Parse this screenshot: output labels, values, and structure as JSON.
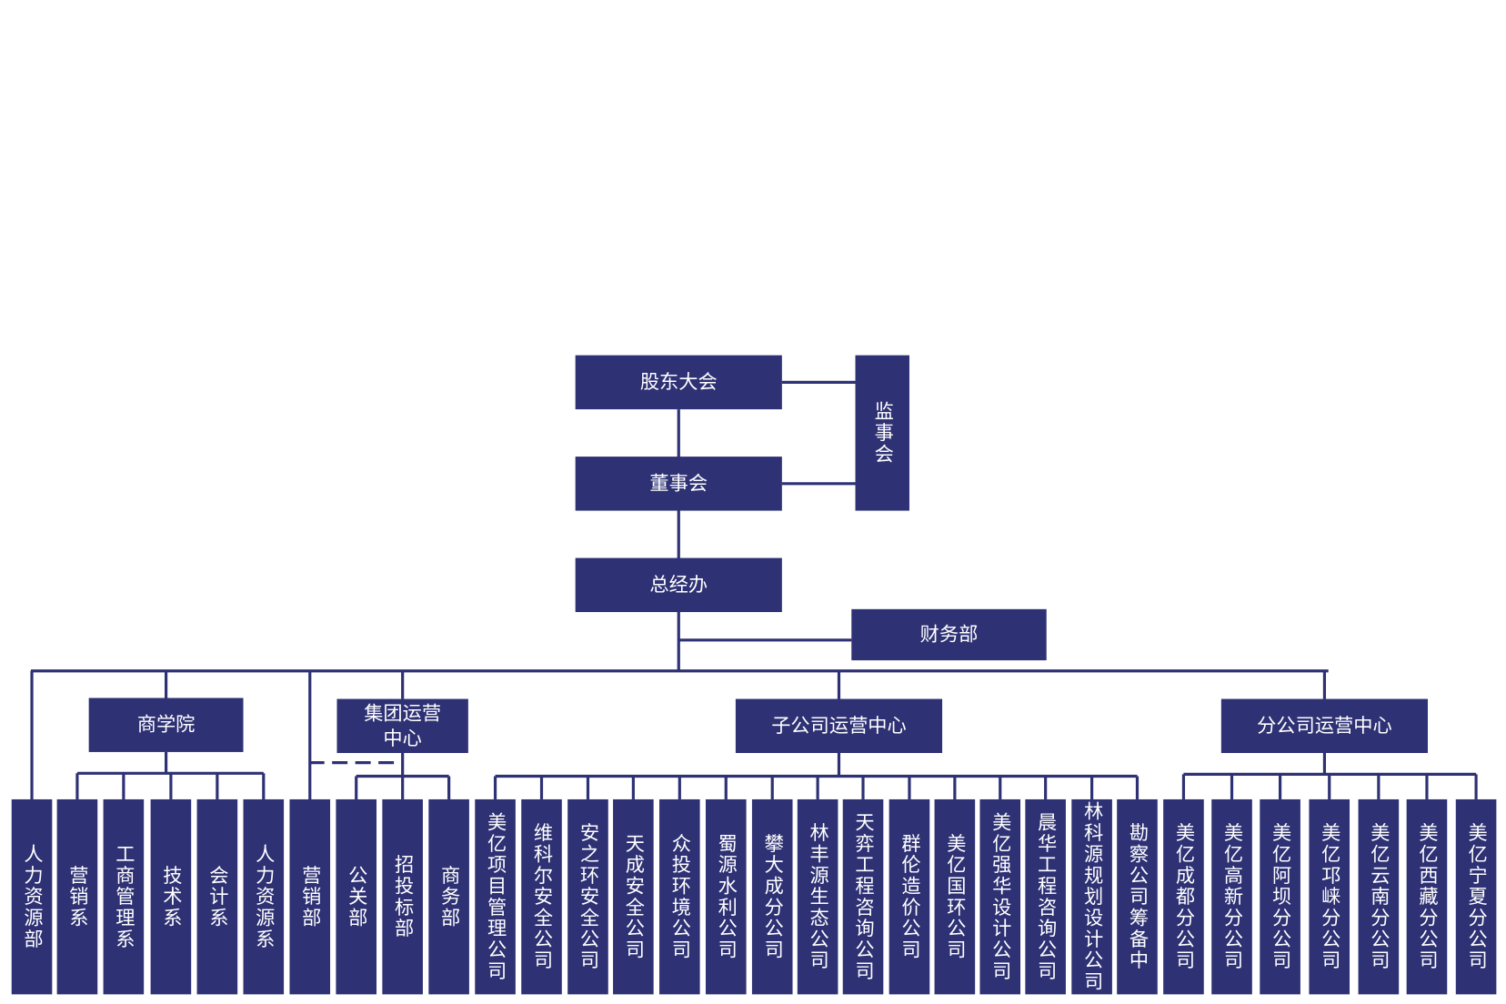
{
  "top": {
    "shareholders": "股东大会",
    "board": "董事会",
    "supervisors": "监事会",
    "gm": "总经办",
    "finance": "财务部"
  },
  "standalone": [
    "人力资源部",
    "营销部"
  ],
  "groups": [
    {
      "label": "商学院",
      "children": [
        "营销系",
        "工商管理系",
        "技术系",
        "会计系",
        "人力资源系"
      ]
    },
    {
      "label": "集团运营中心",
      "children": [
        "公关部",
        "招投标部",
        "商务部"
      ]
    },
    {
      "label": "子公司运营中心",
      "children": [
        "美亿项目管理公司",
        "维科尔安全公司",
        "安之环安全公司",
        "天成安全公司",
        "众投环境公司",
        "蜀源水利公司",
        "攀大成分公司",
        "林丰源生态公司",
        "天弈工程咨询公司",
        "群伦造价公司",
        "美亿国环公司",
        "美亿强华设计公司",
        "晨华工程咨询公司",
        "林科源规划设计公司",
        "勘察公司筹备中"
      ]
    },
    {
      "label": "分公司运营中心",
      "children": [
        "美亿成都分公司",
        "美亿高新分公司",
        "美亿阿坝分公司",
        "美亿邛崃分公司",
        "美亿云南分公司",
        "美亿西藏分公司",
        "美亿宁夏分公司"
      ]
    }
  ]
}
